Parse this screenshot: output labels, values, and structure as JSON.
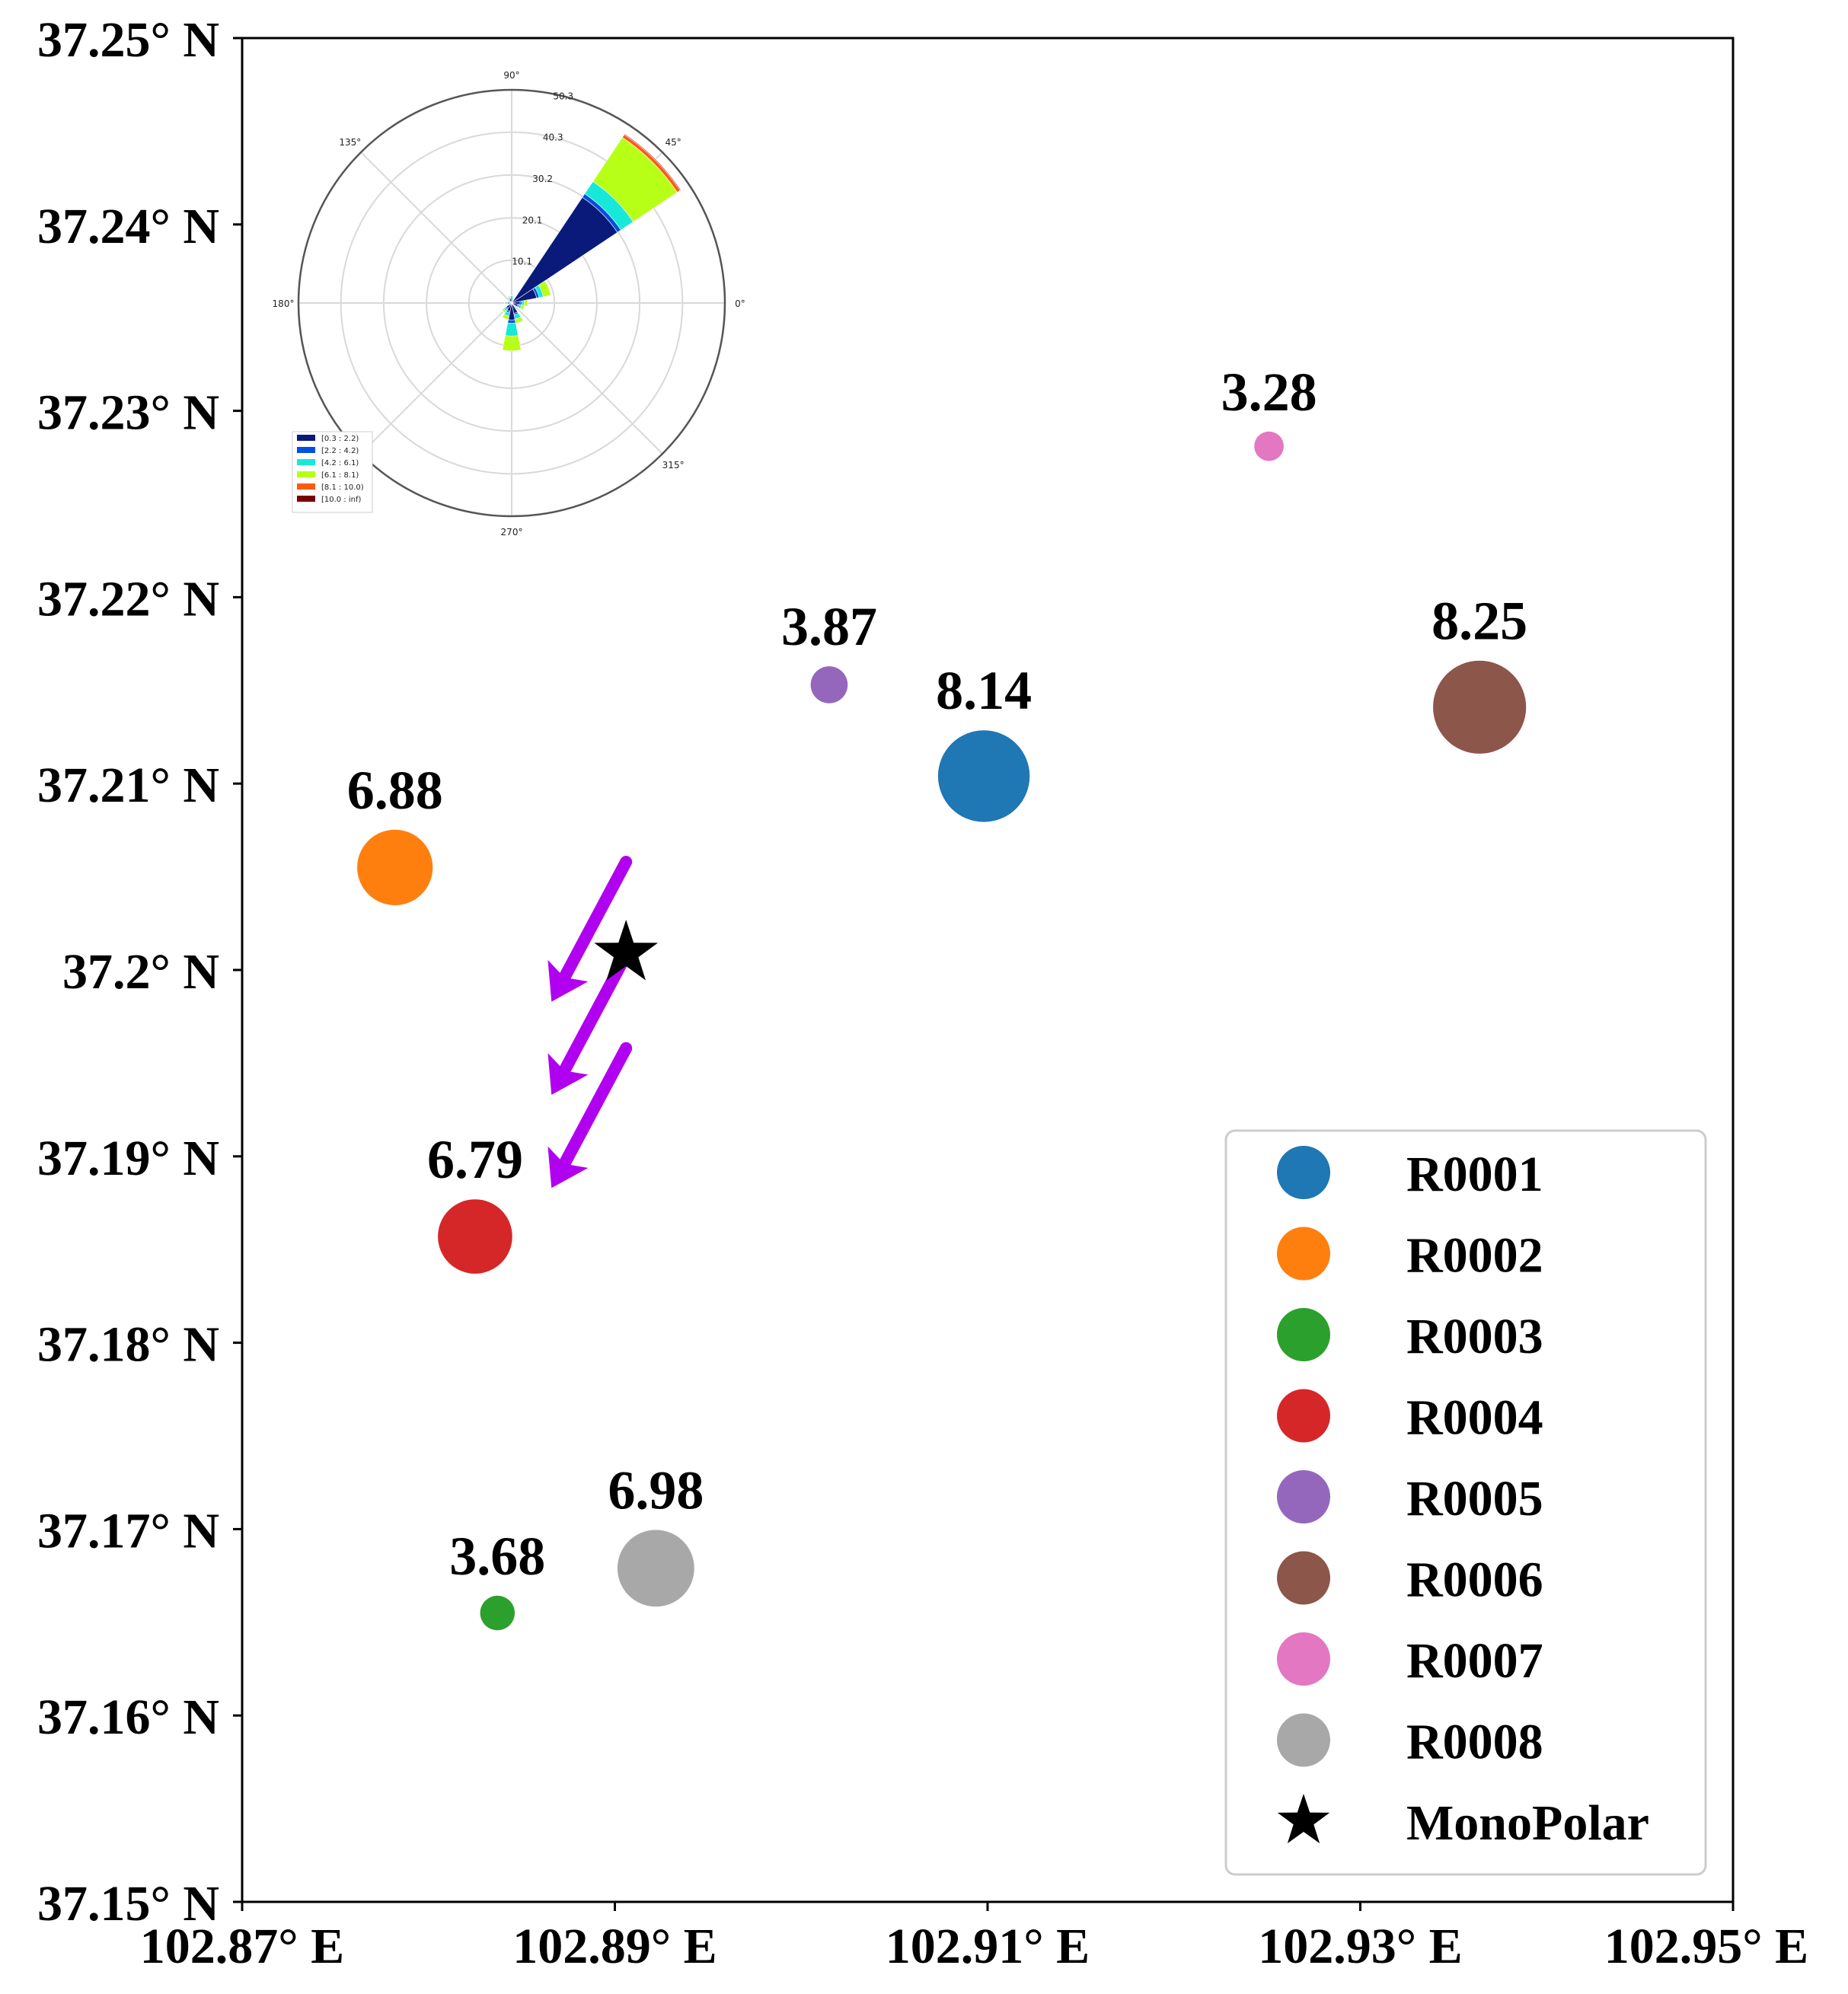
{
  "chart_data": {
    "type": "scatter",
    "title": "",
    "xlabel": "",
    "ylabel": "",
    "xlim": [
      102.87,
      102.95
    ],
    "ylim": [
      37.15,
      37.25
    ],
    "x_ticks": [
      102.87,
      102.89,
      102.91,
      102.93,
      102.95
    ],
    "x_tick_labels": [
      "102.87° E",
      "102.89° E",
      "102.91° E",
      "102.93° E",
      "102.95° E"
    ],
    "y_ticks": [
      37.25,
      37.24,
      37.23,
      37.22,
      37.21,
      37.2,
      37.19,
      37.18,
      37.17,
      37.16,
      37.15
    ],
    "y_tick_labels": [
      "37.25° N",
      "37.24° N",
      "37.23° N",
      "37.22° N",
      "37.21° N",
      "37.2° N",
      "37.19° N",
      "37.18° N",
      "37.17° N",
      "37.16° N",
      "37.15° N"
    ],
    "grid": false,
    "legend_position": "bottom-right",
    "series": [
      {
        "name": "R0001",
        "color": "#1f77b4",
        "x": 102.9098,
        "y": 37.2104,
        "value": 8.14,
        "label": "8.14"
      },
      {
        "name": "R0002",
        "color": "#ff7f0e",
        "x": 102.8782,
        "y": 37.2055,
        "value": 6.88,
        "label": "6.88"
      },
      {
        "name": "R0003",
        "color": "#2ca02c",
        "x": 102.8837,
        "y": 37.1655,
        "value": 3.68,
        "label": "3.68"
      },
      {
        "name": "R0004",
        "color": "#d62728",
        "x": 102.8825,
        "y": 37.1857,
        "value": 6.79,
        "label": "6.79"
      },
      {
        "name": "R0005",
        "color": "#9467bd",
        "x": 102.9015,
        "y": 37.2153,
        "value": 3.87,
        "label": "3.87"
      },
      {
        "name": "R0006",
        "color": "#8c564b",
        "x": 102.9364,
        "y": 37.2141,
        "value": 8.25,
        "label": "8.25"
      },
      {
        "name": "R0007",
        "color": "#e377c2",
        "x": 102.9251,
        "y": 37.2281,
        "value": 3.28,
        "label": "3.28"
      },
      {
        "name": "R0008",
        "color": "#a8a8a8",
        "x": 102.8922,
        "y": 37.1679,
        "value": 6.98,
        "label": "6.98"
      }
    ],
    "monopolar": {
      "name": "MonoPolar",
      "x": 102.8906,
      "y": 37.2009,
      "color": "#000000",
      "marker": "star"
    },
    "wind_arrows": {
      "color": "#b100f0",
      "direction": "southwest",
      "arrows": [
        {
          "x1": 102.8906,
          "y1": 37.2058,
          "x2": 102.8866,
          "y2": 37.1983
        },
        {
          "x1": 102.8906,
          "y1": 37.2008,
          "x2": 102.8866,
          "y2": 37.1933
        },
        {
          "x1": 102.8906,
          "y1": 37.1958,
          "x2": 102.8866,
          "y2": 37.1883
        }
      ]
    },
    "wind_rose_inset": {
      "type": "polar-bar",
      "angle_labels": [
        {
          "deg": 0,
          "text": "0°"
        },
        {
          "deg": 45,
          "text": "45°"
        },
        {
          "deg": 90,
          "text": "90°"
        },
        {
          "deg": 135,
          "text": "135°"
        },
        {
          "deg": 180,
          "text": "180°"
        },
        {
          "deg": 270,
          "text": "270°"
        },
        {
          "deg": 315,
          "text": "315°"
        }
      ],
      "radial_ticks": [
        10.1,
        20.1,
        30.2,
        40.3,
        50.3
      ],
      "radial_tick_labels": [
        "10.1",
        "20.1",
        "30.2",
        "40.3",
        "50.3"
      ],
      "rmax": 50.3,
      "bins": [
        {
          "label": "[0.3 : 2.2)",
          "color": "#0a1a7a"
        },
        {
          "label": "[2.2 : 4.2)",
          "color": "#0050e0"
        },
        {
          "label": "[4.2 : 6.1)",
          "color": "#18e8d8"
        },
        {
          "label": "[6.1 : 8.1)",
          "color": "#b8ff18"
        },
        {
          "label": "[8.1 : 10.0)",
          "color": "#ff5a10"
        },
        {
          "label": "[10.0 : inf)",
          "color": "#7a0000"
        }
      ],
      "sectors": [
        {
          "deg": 45,
          "stack": [
            30.0,
            1.0,
            3.5,
            12.5,
            0.8,
            0.2
          ]
        },
        {
          "deg": 22.5,
          "stack": [
            6.0,
            0.6,
            1.0,
            1.8,
            0,
            0
          ]
        },
        {
          "deg": 0,
          "stack": [
            2.0,
            0.4,
            0.6,
            0.8,
            0,
            0
          ]
        },
        {
          "deg": 337.5,
          "stack": [
            1.5,
            0.3,
            0.6,
            0.6,
            0,
            0
          ]
        },
        {
          "deg": 270,
          "stack": [
            4.0,
            0.8,
            3.0,
            3.5,
            0,
            0
          ]
        },
        {
          "deg": 292.5,
          "stack": [
            2.5,
            0.4,
            1.0,
            1.0,
            0,
            0
          ]
        },
        {
          "deg": 247.5,
          "stack": [
            2.0,
            0.4,
            0.8,
            0.8,
            0,
            0
          ]
        },
        {
          "deg": 225,
          "stack": [
            1.5,
            0.3,
            0.5,
            0.5,
            0,
            0
          ]
        },
        {
          "deg": 90,
          "stack": [
            1.0,
            0.3,
            0.4,
            0.2,
            0,
            0
          ]
        },
        {
          "deg": 112.5,
          "stack": [
            1.0,
            0.2,
            0.3,
            0.2,
            0,
            0
          ]
        },
        {
          "deg": 180,
          "stack": [
            1.0,
            0.2,
            0.3,
            0.2,
            0,
            0
          ]
        }
      ]
    }
  }
}
